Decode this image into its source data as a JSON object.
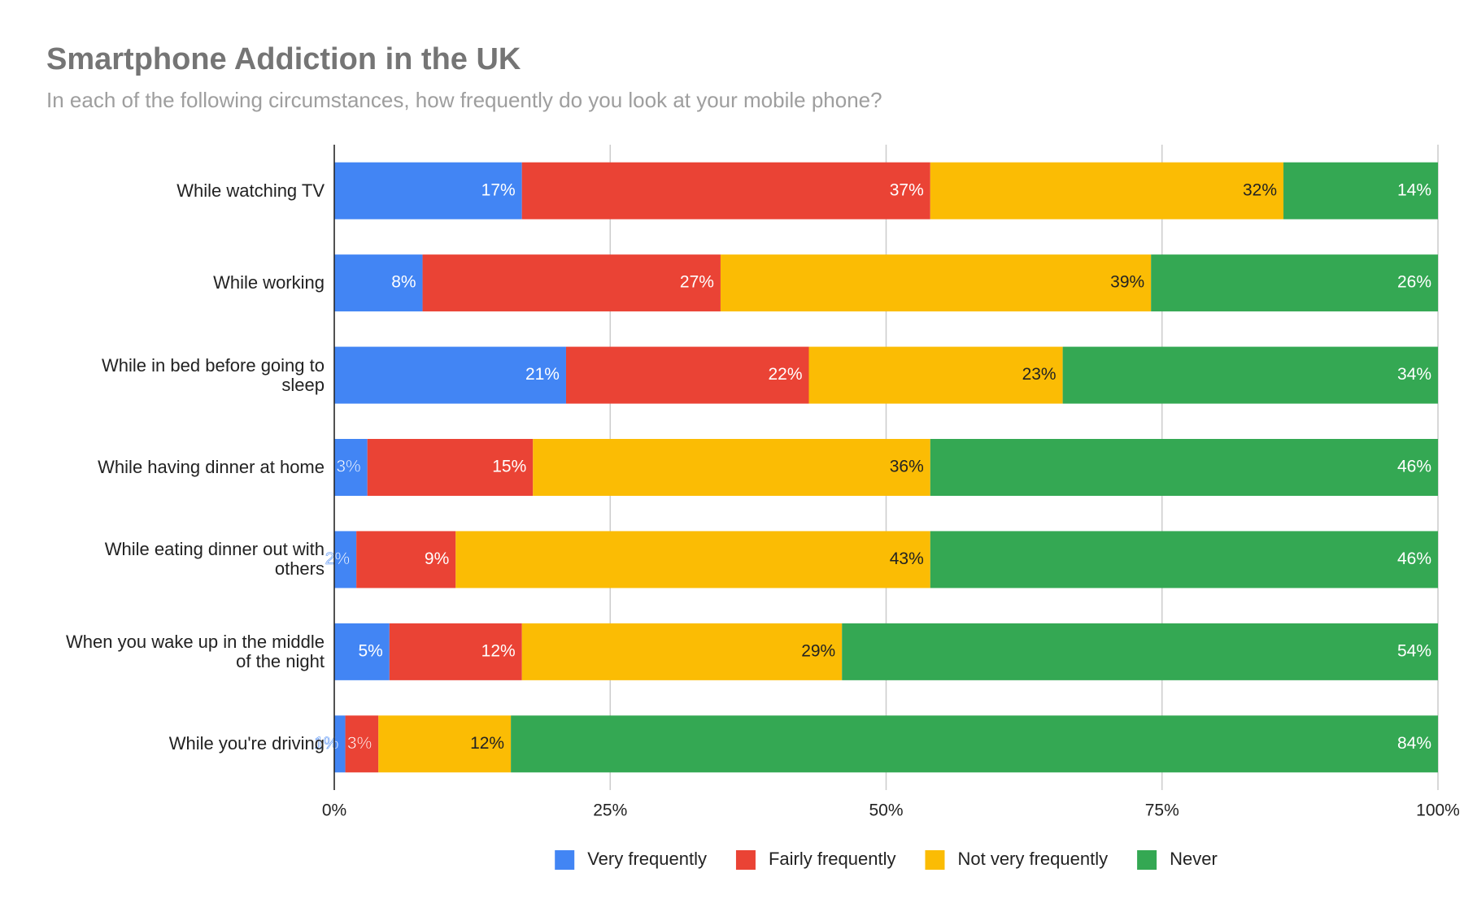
{
  "chart_data": {
    "type": "stacked_bar_horizontal",
    "title": "Smartphone Addiction in the UK",
    "subtitle": "In each of the following circumstances, how frequently do you look at your mobile phone?",
    "categories": [
      "While watching TV",
      "While working",
      "While in bed before going to sleep",
      "While having dinner at home",
      "While eating dinner out with others",
      "When you wake up in the middle of the night",
      "While you're driving"
    ],
    "series": [
      {
        "name": "Very frequently",
        "color": "#4285f4",
        "values": [
          17,
          8,
          21,
          3,
          2,
          5,
          1
        ],
        "value_labels": [
          "17%",
          "8%",
          "21%",
          "3%",
          "2%",
          "5%",
          "1%"
        ]
      },
      {
        "name": "Fairly frequently",
        "color": "#ea4335",
        "values": [
          37,
          27,
          22,
          15,
          9,
          12,
          3
        ],
        "value_labels": [
          "37%",
          "27%",
          "22%",
          "15%",
          "9%",
          "12%",
          "3%"
        ]
      },
      {
        "name": "Not very frequently",
        "color": "#fbbc04",
        "values": [
          32,
          39,
          23,
          36,
          43,
          29,
          12
        ],
        "value_labels": [
          "32%",
          "39%",
          "23%",
          "36%",
          "43%",
          "29%",
          "12%"
        ]
      },
      {
        "name": "Never",
        "color": "#34a853",
        "values": [
          14,
          26,
          34,
          46,
          46,
          54,
          84
        ],
        "value_labels": [
          "14%",
          "26%",
          "34%",
          "46%",
          "46%",
          "54%",
          "84%"
        ]
      }
    ],
    "xlim": [
      0,
      100
    ],
    "xticks": [
      {
        "value": 0,
        "label": "0%"
      },
      {
        "value": 25,
        "label": "25%"
      },
      {
        "value": 50,
        "label": "50%"
      },
      {
        "value": 75,
        "label": "75%"
      },
      {
        "value": 100,
        "label": "100%"
      }
    ],
    "grid": true,
    "legend": "bottom"
  }
}
